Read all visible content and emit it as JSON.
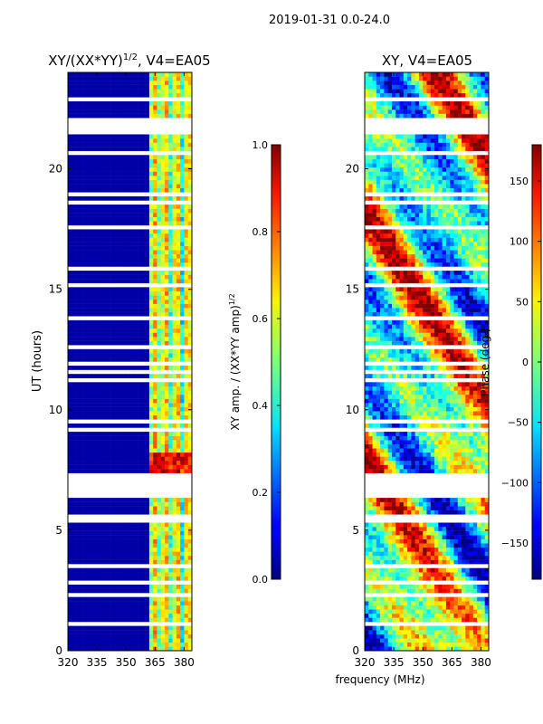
{
  "figure": {
    "suptitle": "2019-01-31 0.0-24.0",
    "xlabel_shared": "frequency (MHz)"
  },
  "chart_data": [
    {
      "type": "heatmap",
      "title": "XY/(XX*YY)",
      "title_exponent": "1/2",
      "title_suffix": ", V4=EA05",
      "xlabel": "",
      "ylabel": "UT (hours)",
      "xlim": [
        320,
        384
      ],
      "ylim": [
        0,
        24
      ],
      "xticks": [
        320,
        335,
        350,
        365,
        380
      ],
      "yticks": [
        0,
        5,
        10,
        15,
        20
      ],
      "colormap": "jet",
      "colorbar": {
        "label": "XY amp. / (XX*YY amp)",
        "label_exponent": "1/2",
        "range": [
          0.0,
          1.0
        ],
        "ticks": [
          "0.0",
          "0.2",
          "0.4",
          "0.6",
          "0.8",
          "1.0"
        ],
        "tick_values": [
          0.0,
          0.2,
          0.4,
          0.6,
          0.8,
          1.0
        ]
      }
    },
    {
      "type": "heatmap",
      "title": "XY, V4=EA05",
      "xlabel": "",
      "ylabel": "",
      "xlim": [
        320,
        384
      ],
      "ylim": [
        0,
        24
      ],
      "xticks": [
        320,
        335,
        350,
        365,
        380
      ],
      "yticks": [
        0,
        5,
        10,
        15,
        20
      ],
      "colormap": "jet",
      "colorbar": {
        "label": "Phase (deg.)",
        "range": [
          -180,
          180
        ],
        "ticks": [
          "−150",
          "−100",
          "−50",
          "0",
          "50",
          "100",
          "150"
        ],
        "tick_values": [
          -150,
          -100,
          -50,
          0,
          50,
          100,
          150
        ]
      }
    }
  ]
}
